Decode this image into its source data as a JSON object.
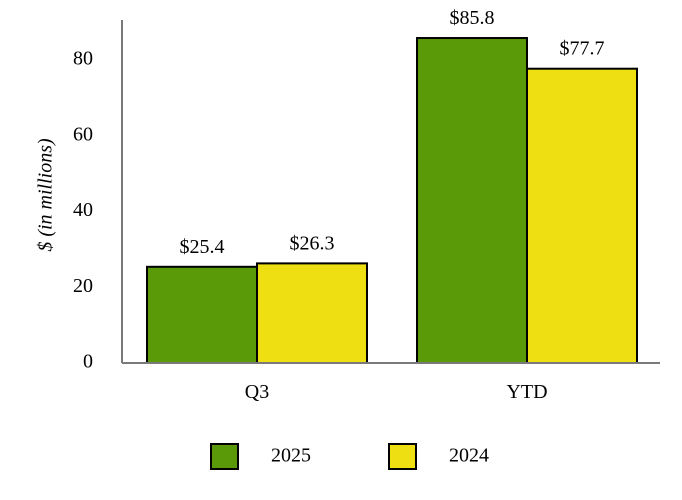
{
  "chart_data": {
    "type": "bar",
    "categories": [
      "Q3",
      "YTD"
    ],
    "series": [
      {
        "name": "2025",
        "values": [
          25.4,
          85.8
        ],
        "labels": [
          "$25.4",
          "$85.8"
        ],
        "color": "#5a9a08"
      },
      {
        "name": "2024",
        "values": [
          26.3,
          77.7
        ],
        "labels": [
          "$26.3",
          "$77.7"
        ],
        "color": "#eddf12"
      }
    ],
    "ylabel": "$ (in millions)",
    "xlabel": "",
    "ylim": [
      0,
      90
    ],
    "yticks": [
      0,
      20,
      40,
      60,
      80
    ],
    "grid": false,
    "legend": "bottom"
  }
}
